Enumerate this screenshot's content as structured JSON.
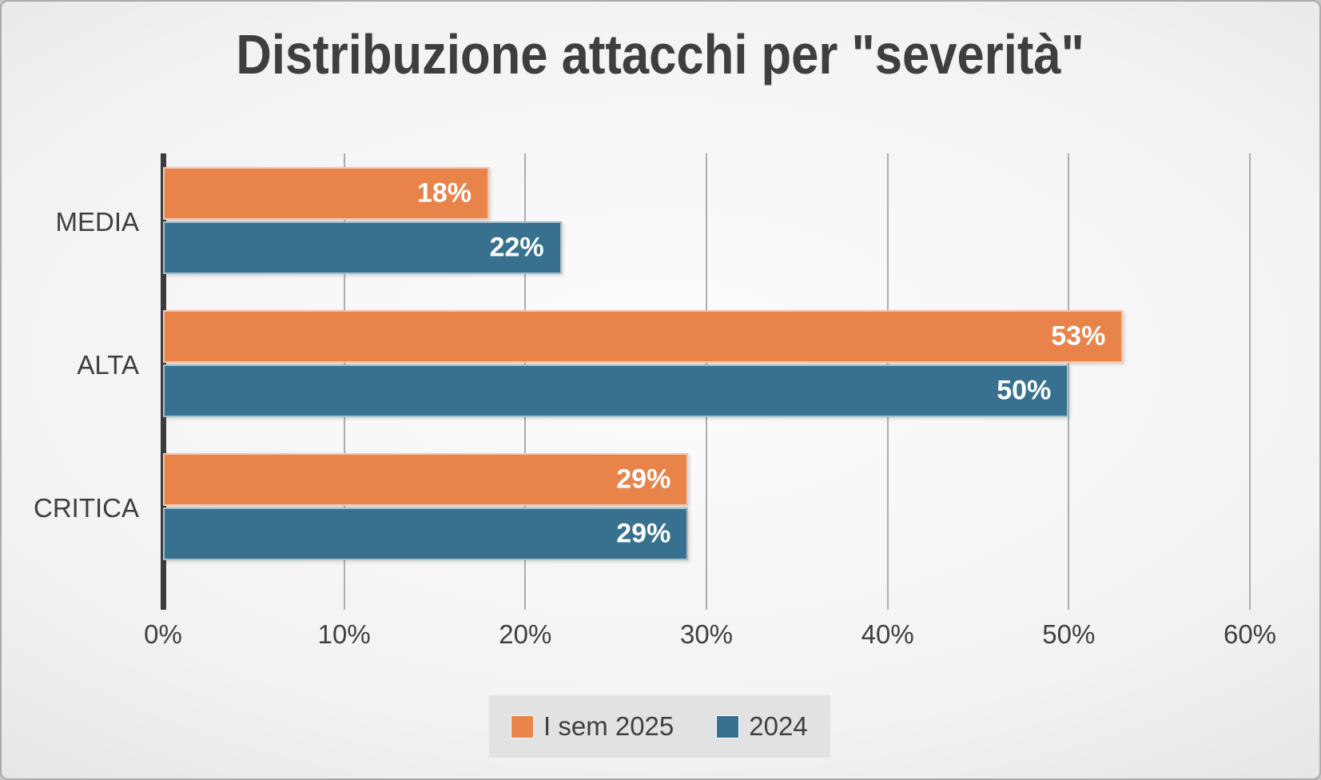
{
  "chart_data": {
    "type": "bar",
    "orientation": "horizontal",
    "title": "Distribuzione attacchi per \"severità\"",
    "categories": [
      "MEDIA",
      "ALTA",
      "CRITICA"
    ],
    "series": [
      {
        "name": "I sem 2025",
        "color": "#E8834A",
        "values": [
          18,
          53,
          29
        ]
      },
      {
        "name": "2024",
        "color": "#37718F",
        "values": [
          22,
          50,
          29
        ]
      }
    ],
    "value_suffix": "%",
    "data_labels": "inside-end",
    "x_ticks": [
      "0%",
      "10%",
      "20%",
      "30%",
      "40%",
      "50%",
      "60%"
    ],
    "xlim": [
      0,
      60
    ],
    "grid": true,
    "legend_position": "bottom"
  },
  "colors": {
    "series_1": "#E8834A",
    "series_2": "#37718F",
    "title_text": "#3E3E3E",
    "label_text": "#3F3F3F",
    "data_label_text": "#FFFFFF",
    "gridline": "#ACACAC",
    "axis_line": "#3C3C3C",
    "legend_background": "#E2E2E2"
  }
}
